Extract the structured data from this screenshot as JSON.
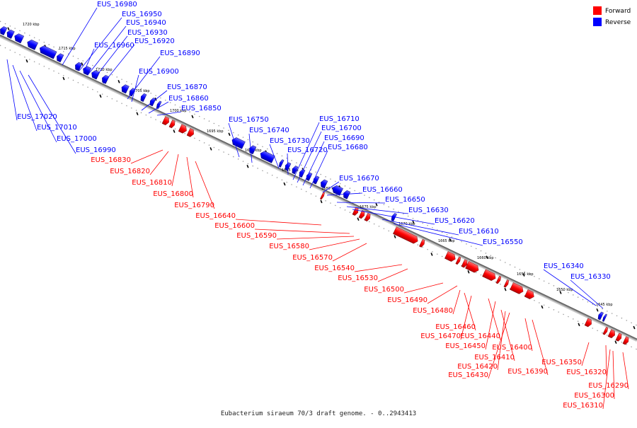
{
  "title": "Eubacterium siraeum 70/3 draft genome. - 0..2943413",
  "legend": [
    {
      "label": "Forward",
      "color": "#ff0000"
    },
    {
      "label": "Reverse",
      "color": "#0000ff"
    }
  ],
  "colors": {
    "forward": "#ff0000",
    "reverse": "#0000ff",
    "backbone": "#888888"
  },
  "kbp_labels": [
    "1720 kbp",
    "1715 kbp",
    "1710 kbp",
    "1705 kbp",
    "1700 kbp",
    "1695 kbp",
    "1690 kbp",
    "1685 kbp",
    "1680 kbp",
    "1675 kbp",
    "1670 kbp",
    "1665 kbp",
    "1660 kbp",
    "1655 kbp",
    "1650 kbp",
    "1645 kbp"
  ],
  "reverse_genes": [
    "EUS_16980",
    "EUS_16950",
    "EUS_16940",
    "EUS_16930",
    "EUS_16960",
    "EUS_16920",
    "EUS_16890",
    "EUS_16900",
    "EUS_16870",
    "EUS_16860",
    "EUS_16850",
    "EUS_16750",
    "EUS_16740",
    "EUS_16730",
    "EUS_16720",
    "EUS_16710",
    "EUS_16700",
    "EUS_16690",
    "EUS_16680",
    "EUS_16670",
    "EUS_16660",
    "EUS_16650",
    "EUS_16630",
    "EUS_16620",
    "EUS_16610",
    "EUS_16550",
    "EUS_16340",
    "EUS_16330",
    "EUS_17020",
    "EUS_17010",
    "EUS_17000",
    "EUS_16990"
  ],
  "forward_genes": [
    "EUS_16830",
    "EUS_16820",
    "EUS_16810",
    "EUS_16800",
    "EUS_16790",
    "EUS_16640",
    "EUS_16600",
    "EUS_16590",
    "EUS_16580",
    "EUS_16570",
    "EUS_16540",
    "EUS_16530",
    "EUS_16500",
    "EUS_16490",
    "EUS_16480",
    "EUS_16460",
    "EUS_16470",
    "EUS_16440",
    "EUS_16450",
    "EUS_16400",
    "EUS_16410",
    "EUS_16420",
    "EUS_16430",
    "EUS_16390",
    "EUS_16350",
    "EUS_16320",
    "EUS_16290",
    "EUS_16300",
    "EUS_16310"
  ]
}
